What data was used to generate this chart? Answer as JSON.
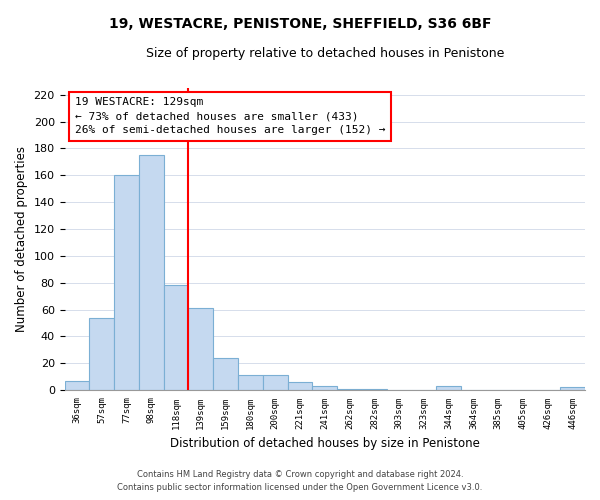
{
  "title": "19, WESTACRE, PENISTONE, SHEFFIELD, S36 6BF",
  "subtitle": "Size of property relative to detached houses in Penistone",
  "xlabel": "Distribution of detached houses by size in Penistone",
  "ylabel": "Number of detached properties",
  "bar_labels": [
    "36sqm",
    "57sqm",
    "77sqm",
    "98sqm",
    "118sqm",
    "139sqm",
    "159sqm",
    "180sqm",
    "200sqm",
    "221sqm",
    "241sqm",
    "262sqm",
    "282sqm",
    "303sqm",
    "323sqm",
    "344sqm",
    "364sqm",
    "385sqm",
    "405sqm",
    "426sqm",
    "446sqm"
  ],
  "bar_values": [
    7,
    54,
    160,
    175,
    78,
    61,
    24,
    11,
    11,
    6,
    3,
    1,
    1,
    0,
    0,
    3,
    0,
    0,
    0,
    0,
    2
  ],
  "bar_color": "#c5d9f0",
  "bar_edge_color": "#7bafd4",
  "vline_x": 4.5,
  "vline_color": "red",
  "annotation_title": "19 WESTACRE: 129sqm",
  "annotation_line1": "← 73% of detached houses are smaller (433)",
  "annotation_line2": "26% of semi-detached houses are larger (152) →",
  "annotation_box_color": "white",
  "annotation_box_edge": "red",
  "ylim": [
    0,
    225
  ],
  "yticks": [
    0,
    20,
    40,
    60,
    80,
    100,
    120,
    140,
    160,
    180,
    200,
    220
  ],
  "footnote1": "Contains HM Land Registry data © Crown copyright and database right 2024.",
  "footnote2": "Contains public sector information licensed under the Open Government Licence v3.0."
}
